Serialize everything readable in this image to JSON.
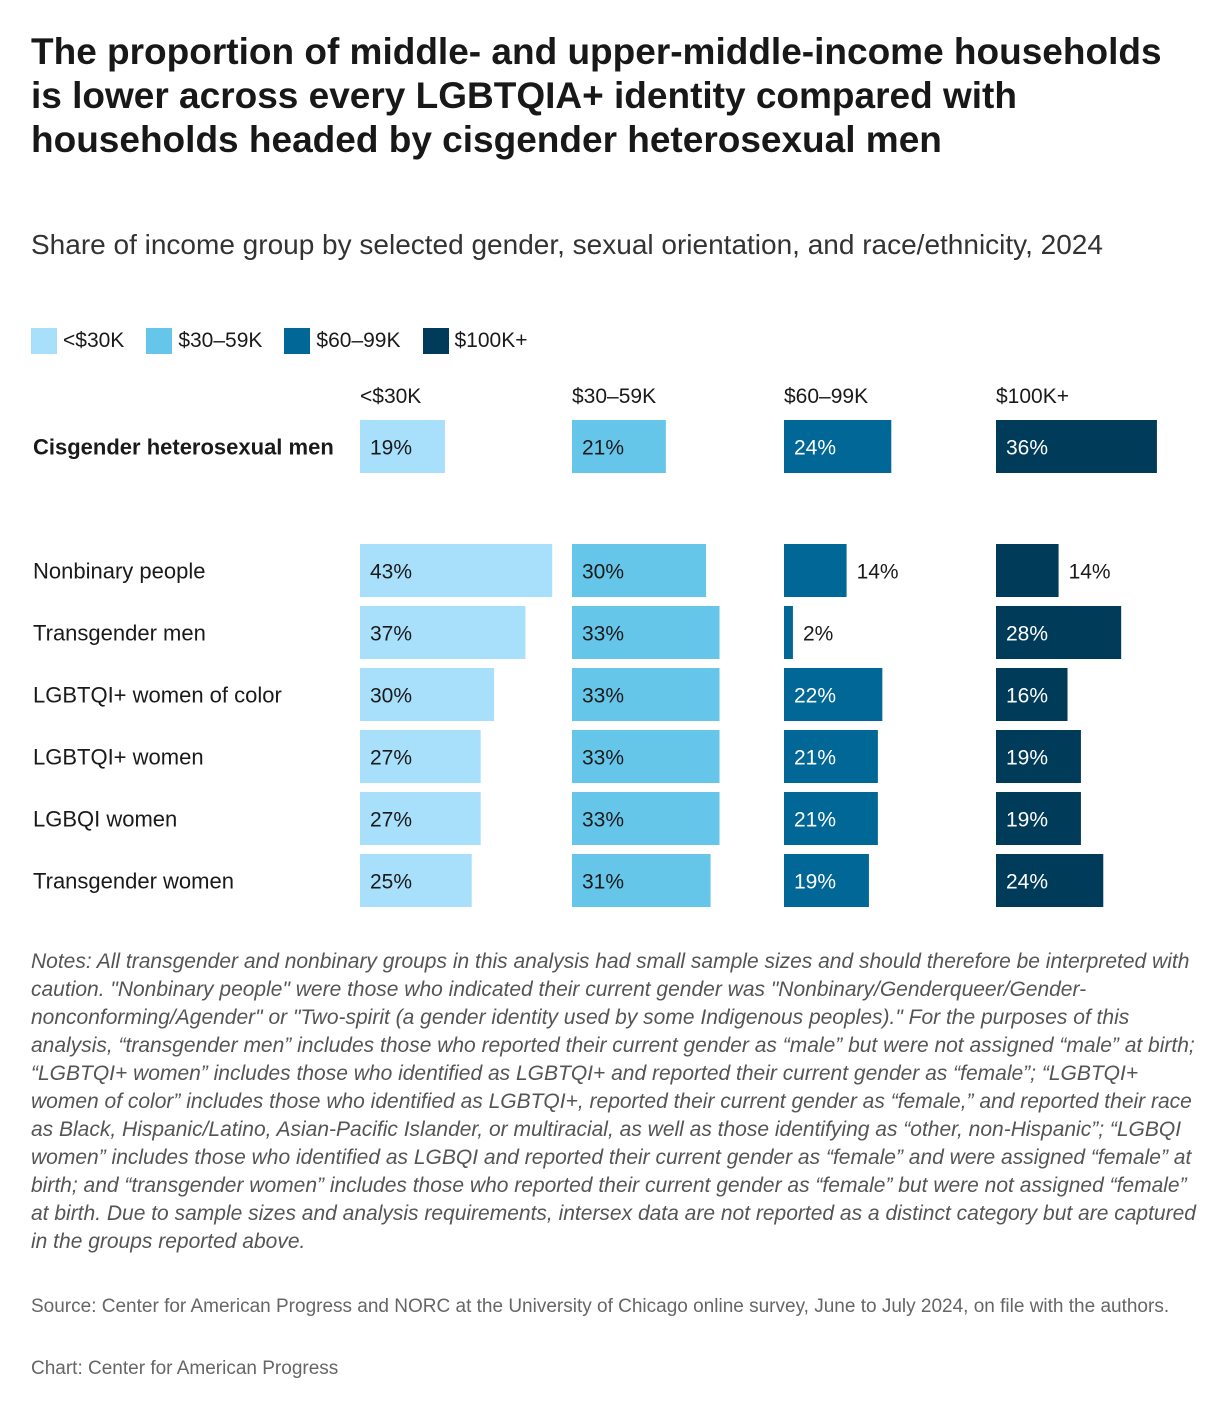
{
  "title": "The proportion of middle- and upper-middle-income households is lower across every LGBTQIA+ identity compared with households headed by cisgender heterosexual men",
  "subtitle": "Share of income group by selected gender, sexual orientation, and race/ethnicity, 2024",
  "notes": "Notes: All transgender and nonbinary groups in this analysis had small sample sizes and should therefore be interpreted with caution. \"Nonbinary people\" were those who indicated their current gender was \"Nonbinary/Genderqueer/Gender-nonconforming/Agender\" or \"Two-spirit (a gender identity used by some Indigenous peoples).\"  For the purposes of this analysis, “transgender men” includes those who reported their current gender as “male” but were not assigned “male” at birth; “LGBTQI+ women” includes those who identified as LGBTQI+ and reported their current gender as “female”; “LGBTQI+ women of color” includes those who identified as LGBTQI+, reported their current gender as “female,” and reported their race as Black, Hispanic/Latino, Asian-Pacific Islander, or multiracial, as well as those identifying as “other, non-Hispanic”; “LGBQI women” includes those who identified as LGBQI and reported their current gender as “female” and were assigned “female” at birth; and “transgender women” includes those who reported their current gender as “female” but were not assigned “female” at birth. Due to sample sizes and analysis requirements, intersex data are not reported as a distinct category but are captured in the groups reported above.",
  "source": "Source: Center for American Progress and NORC at the University of Chicago online survey, June to July 2024, on file with the authors.",
  "credit": "Chart: Center for American Progress",
  "chart_data": {
    "type": "bar",
    "orientation": "horizontal",
    "value_suffix": "%",
    "categories": [
      "Cisgender heterosexual men",
      "Nonbinary people",
      "Transgender men",
      "LGBTQI+ women of color",
      "LGBTQI+ women",
      "LGBQI women",
      "Transgender women"
    ],
    "emphasized_category": "Cisgender heterosexual men",
    "series": [
      {
        "name": "<$30K",
        "color": "#a8e0fb",
        "values": [
          19,
          43,
          37,
          30,
          27,
          27,
          25
        ]
      },
      {
        "name": "$30–59K",
        "color": "#66c6ea",
        "values": [
          21,
          30,
          33,
          33,
          33,
          33,
          31
        ]
      },
      {
        "name": "$60–99K",
        "color": "#006796",
        "values": [
          24,
          14,
          2,
          22,
          21,
          21,
          19
        ]
      },
      {
        "name": "$100K+",
        "color": "#003b5a",
        "values": [
          36,
          14,
          28,
          16,
          19,
          19,
          24
        ]
      }
    ],
    "legend_position": "top-left",
    "grid": false
  }
}
